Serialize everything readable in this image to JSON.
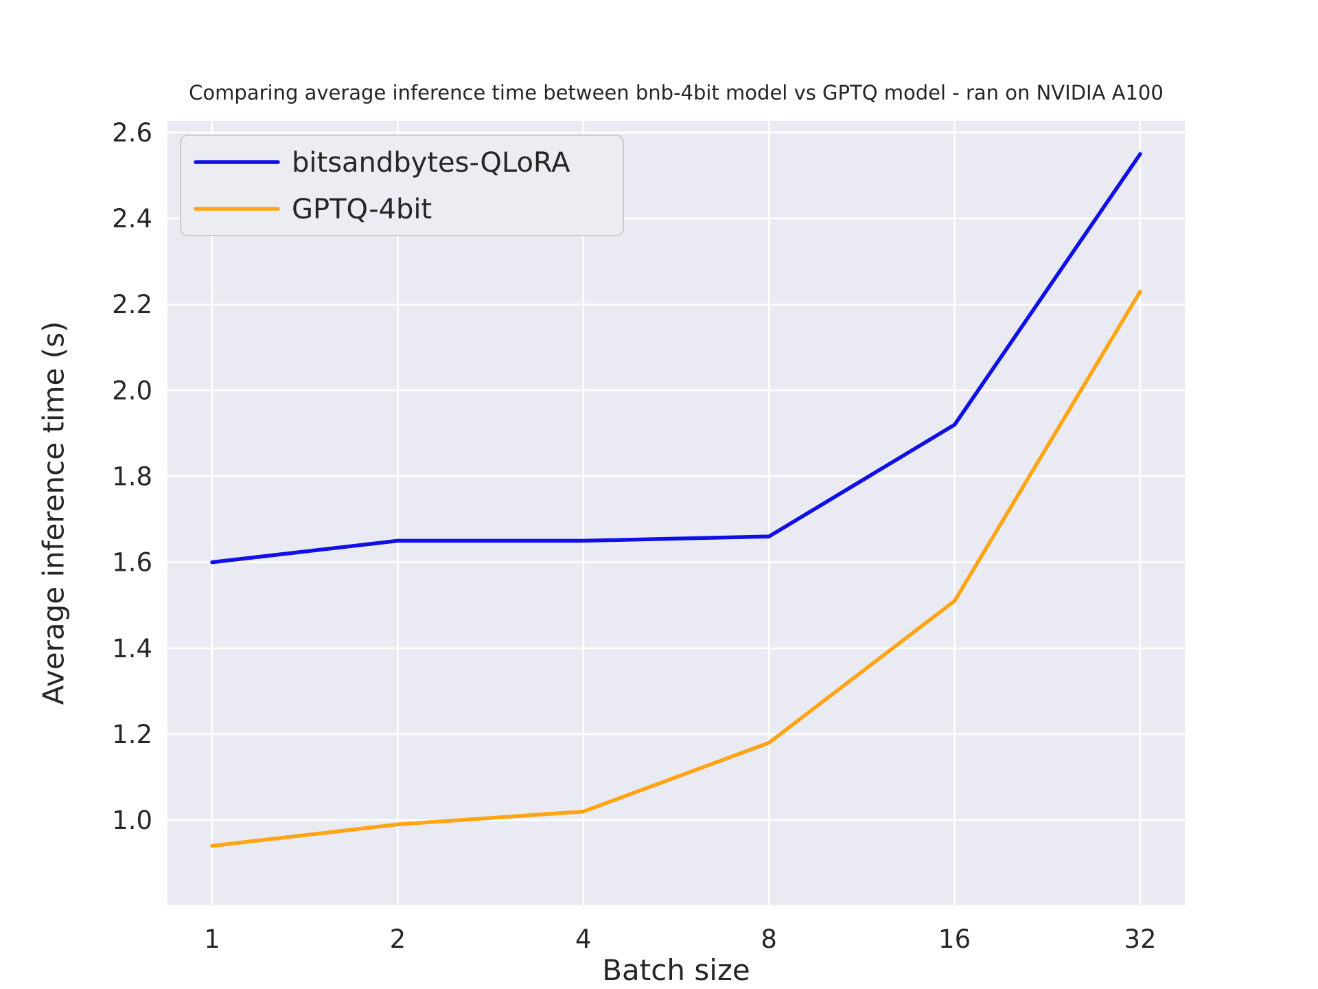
{
  "figure": {
    "background": "#ffffff"
  },
  "chart_data": {
    "type": "line",
    "title": "Comparing average inference time between bnb-4bit model vs GPTQ model - ran on NVIDIA A100",
    "xlabel": "Batch size",
    "ylabel": "Average inference time (s)",
    "categories": [
      "1",
      "2",
      "4",
      "8",
      "16",
      "32"
    ],
    "x_scale": "log2 spacing (categorical)",
    "series": [
      {
        "name": "bitsandbytes-QLoRA",
        "color": "#0f0fe6",
        "values": [
          1.6,
          1.65,
          1.65,
          1.66,
          1.92,
          2.55
        ]
      },
      {
        "name": "GPTQ-4bit",
        "color": "#ffa414",
        "values": [
          0.94,
          0.99,
          1.02,
          1.18,
          1.51,
          2.23
        ]
      }
    ],
    "yticks": [
      1.0,
      1.2,
      1.4,
      1.6,
      1.8,
      2.0,
      2.2,
      2.4,
      2.6
    ],
    "ylim": [
      0.802,
      2.627
    ],
    "grid": true,
    "legend_position": "upper left",
    "plot_background": "#eaeaf2",
    "grid_color": "#ffffff",
    "text_color": "#262626",
    "tick_font_size": 37,
    "legend_font_size": 40
  }
}
